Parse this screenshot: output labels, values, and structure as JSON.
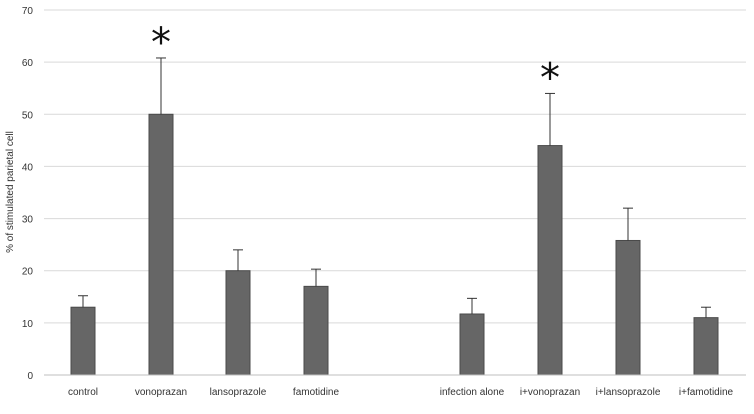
{
  "chart_data": {
    "type": "bar",
    "title": "",
    "xlabel": "",
    "ylabel": "% of stimulated parietal cell",
    "ylim": [
      0,
      70
    ],
    "yticks": [
      0,
      10,
      20,
      30,
      40,
      50,
      60,
      70
    ],
    "grid": true,
    "legend": "none",
    "categories": [
      "control",
      "vonoprazan",
      "lansoprazole",
      "famotidine",
      "",
      "infection alone",
      "i+vonoprazan",
      "i+lansoprazole",
      "i+famotidine"
    ],
    "series": [
      {
        "values": [
          13,
          50,
          20,
          17,
          null,
          11.7,
          44,
          25.8,
          11
        ],
        "error_upper": [
          15.2,
          60.8,
          24,
          20.3,
          null,
          14.7,
          54,
          32,
          13
        ]
      }
    ],
    "annotations": [
      {
        "category": "vonoprazan",
        "text": "*"
      },
      {
        "category": "i+vonoprazan",
        "text": "*"
      }
    ],
    "colors": {
      "bar": "#666666",
      "bar_stroke": "#4a4a4a",
      "grid": "#d9d9d9",
      "axis": "#bfbfbf",
      "error": "#333333"
    }
  }
}
